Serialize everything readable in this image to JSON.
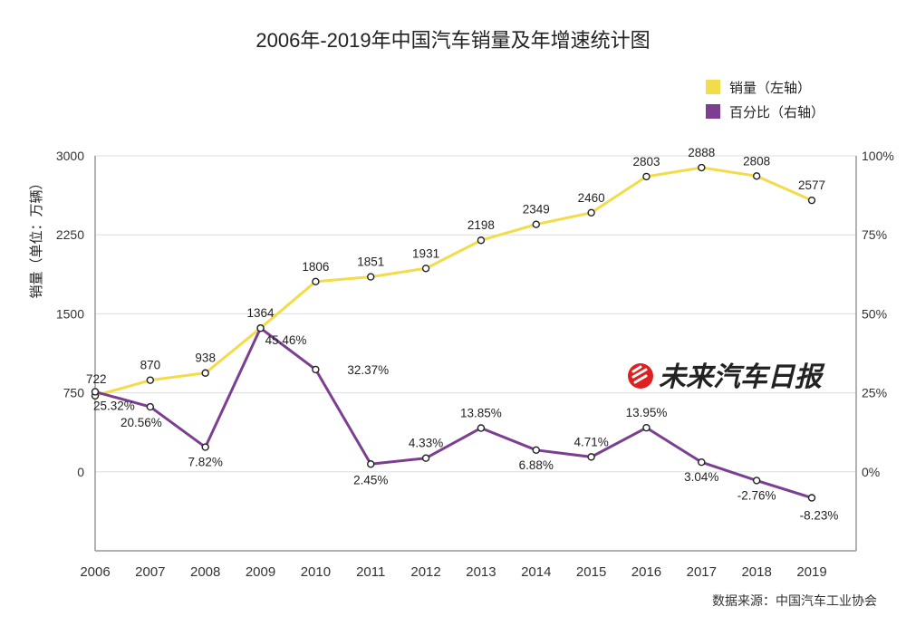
{
  "chart_data": {
    "type": "line",
    "title": "2006年-2019年中国汽车销量及年增速统计图",
    "ylabel": "销量（单位：万辆）",
    "source": "数据来源：中国汽车工业协会",
    "watermark": "未来汽车日报",
    "categories": [
      "2006",
      "2007",
      "2008",
      "2009",
      "2010",
      "2011",
      "2012",
      "2013",
      "2014",
      "2015",
      "2016",
      "2017",
      "2018",
      "2019"
    ],
    "left_axis": {
      "ylim": [
        -750,
        3000
      ],
      "ticks": [
        0,
        750,
        1500,
        2250,
        3000
      ],
      "tick_labels": [
        "0",
        "750",
        "1500",
        "2250",
        "3000"
      ]
    },
    "right_axis": {
      "ylim": [
        -25,
        100
      ],
      "ticks": [
        0,
        25,
        50,
        75,
        100
      ],
      "tick_labels": [
        "0%",
        "25%",
        "50%",
        "75%",
        "100%"
      ]
    },
    "grid": true,
    "legend_position": "top-right",
    "series": [
      {
        "name": "销量（左轴）",
        "axis": "left",
        "color": "#f2dc4a",
        "values": [
          722,
          870,
          938,
          1364,
          1806,
          1851,
          1931,
          2198,
          2349,
          2460,
          2803,
          2888,
          2808,
          2577
        ],
        "labels": [
          "722",
          "870",
          "938",
          "1364",
          "1806",
          "1851",
          "1931",
          "2198",
          "2349",
          "2460",
          "2803",
          "2888",
          "2808",
          "2577"
        ]
      },
      {
        "name": "百分比（右轴）",
        "axis": "right",
        "color": "#7b3f91",
        "values": [
          25.32,
          20.56,
          7.82,
          45.46,
          32.37,
          2.45,
          4.33,
          13.85,
          6.88,
          4.71,
          13.95,
          3.04,
          -2.76,
          -8.23
        ],
        "labels": [
          "25.32%",
          "20.56%",
          "7.82%",
          "45.46%",
          "32.37%",
          "2.45%",
          "4.33%",
          "13.85%",
          "6.88%",
          "4.71%",
          "13.95%",
          "3.04%",
          "-2.76%",
          "-8.23%"
        ]
      }
    ]
  }
}
